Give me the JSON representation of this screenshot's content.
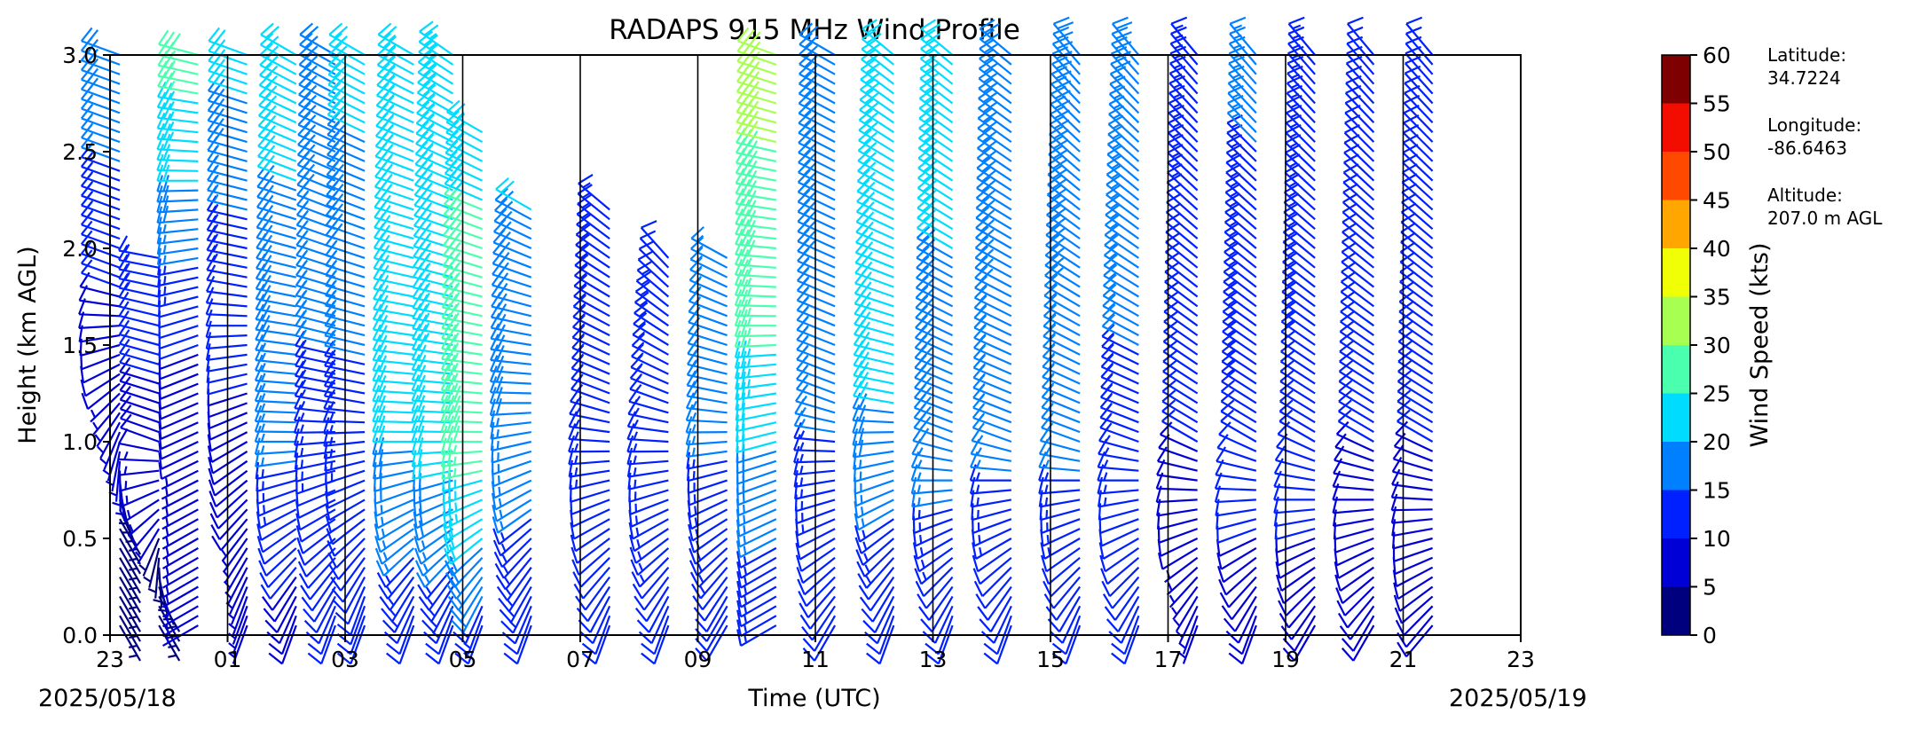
{
  "chart_data": {
    "type": "wind_barbs",
    "title": "RADAPS 915 MHz Wind Profile",
    "xlabel": "Time (UTC)",
    "ylabel": "Height (km AGL)",
    "start_date_label": "2025/05/18",
    "end_date_label": "2025/05/19",
    "x_tick_labels": [
      "23",
      "01",
      "03",
      "05",
      "07",
      "09",
      "11",
      "13",
      "15",
      "17",
      "19",
      "21",
      "23"
    ],
    "y_tick_labels": [
      "0.0",
      "0.5",
      "1.0",
      "1.5",
      "2.0",
      "2.5",
      "3.0"
    ],
    "ylim": [
      0,
      3
    ],
    "colorbar": {
      "label": "Wind Speed (kts)",
      "bounds": [
        0,
        5,
        10,
        15,
        20,
        25,
        30,
        35,
        40,
        45,
        50,
        55,
        60
      ],
      "tick_labels": [
        "0",
        "5",
        "10",
        "15",
        "20",
        "25",
        "30",
        "35",
        "40",
        "45",
        "50",
        "55",
        "60"
      ],
      "colors": [
        "#00007f",
        "#0000d6",
        "#0020ff",
        "#0080ff",
        "#00dcfe",
        "#4affad",
        "#a6ff51",
        "#f0fe06",
        "#ffa700",
        "#ff4800",
        "#f20d00",
        "#7f0000"
      ]
    },
    "site_info": [
      {
        "label": "Latitude:",
        "value": "34.7224"
      },
      {
        "label": "Longitude:",
        "value": "-86.6463"
      },
      {
        "label": "Altitude:",
        "value": "207.0 m AGL"
      }
    ],
    "profiles": [
      {
        "time": "23:10",
        "low": [
          0.6,
          4,
          150
        ],
        "mid": [
          1.8,
          10,
          290
        ],
        "high": [
          3.0,
          20,
          290
        ]
      },
      {
        "time": "23:50",
        "low": [
          0.2,
          3,
          150
        ],
        "mid": [
          1.0,
          8,
          290
        ],
        "high": [
          2.0,
          14,
          280
        ]
      },
      {
        "time": "00:30",
        "low": [
          0.5,
          6,
          240
        ],
        "mid": [
          1.5,
          10,
          250
        ],
        "high": [
          3.0,
          28,
          285
        ]
      },
      {
        "time": "01:20",
        "low": [
          0.2,
          6,
          200
        ],
        "mid": [
          1.8,
          12,
          280
        ],
        "high": [
          3.0,
          22,
          290
        ]
      },
      {
        "time": "02:10",
        "low": [
          0.1,
          8,
          200
        ],
        "mid": [
          1.0,
          16,
          270
        ],
        "high": [
          3.0,
          22,
          300
        ]
      },
      {
        "time": "02:50",
        "low": [
          0.1,
          10,
          200
        ],
        "mid": [
          1.2,
          14,
          280
        ],
        "high": [
          3.0,
          20,
          300
        ]
      },
      {
        "time": "03:20",
        "low": [
          0.2,
          10,
          200
        ],
        "mid": [
          1.2,
          14,
          280
        ],
        "high": [
          3.0,
          22,
          300
        ]
      },
      {
        "time": "04:10",
        "low": [
          0.1,
          12,
          200
        ],
        "mid": [
          1.0,
          20,
          270
        ],
        "high": [
          3.0,
          24,
          300
        ]
      },
      {
        "time": "04:50",
        "low": [
          0.1,
          12,
          200
        ],
        "mid": [
          1.0,
          22,
          270
        ],
        "high": [
          3.0,
          24,
          305
        ]
      },
      {
        "time": "05:20",
        "low": [
          0.1,
          14,
          200
        ],
        "mid": [
          1.0,
          28,
          270
        ],
        "high": [
          2.6,
          24,
          300
        ]
      },
      {
        "time": "06:10",
        "low": [
          0.1,
          12,
          200
        ],
        "mid": [
          1.2,
          18,
          270
        ],
        "high": [
          2.2,
          20,
          300
        ]
      },
      {
        "time": "07:30",
        "low": [
          0.1,
          10,
          200
        ],
        "mid": [
          1.2,
          14,
          290
        ],
        "high": [
          2.2,
          14,
          310
        ]
      },
      {
        "time": "08:30",
        "low": [
          0.1,
          12,
          200
        ],
        "mid": [
          1.2,
          14,
          290
        ],
        "high": [
          2.0,
          12,
          320
        ]
      },
      {
        "time": "09:30",
        "low": [
          0.2,
          12,
          210
        ],
        "mid": [
          1.2,
          16,
          280
        ],
        "high": [
          2.0,
          16,
          300
        ]
      },
      {
        "time": "10:20",
        "low": [
          0.4,
          14,
          240
        ],
        "mid": [
          1.6,
          26,
          270
        ],
        "high": [
          3.0,
          32,
          290
        ]
      },
      {
        "time": "11:20",
        "low": [
          0.1,
          10,
          210
        ],
        "mid": [
          1.2,
          16,
          290
        ],
        "high": [
          3.0,
          20,
          300
        ]
      },
      {
        "time": "12:20",
        "low": [
          0.1,
          10,
          200
        ],
        "mid": [
          1.2,
          20,
          280
        ],
        "high": [
          3.0,
          22,
          310
        ]
      },
      {
        "time": "13:20",
        "low": [
          0.1,
          10,
          200
        ],
        "mid": [
          1.0,
          18,
          290
        ],
        "high": [
          3.0,
          22,
          310
        ]
      },
      {
        "time": "14:20",
        "low": [
          0.1,
          10,
          200
        ],
        "mid": [
          1.0,
          16,
          290
        ],
        "high": [
          3.0,
          20,
          310
        ]
      },
      {
        "time": "15:30",
        "low": [
          0.1,
          10,
          200
        ],
        "mid": [
          1.0,
          16,
          290
        ],
        "high": [
          3.0,
          20,
          320
        ]
      },
      {
        "time": "16:30",
        "low": [
          0.1,
          10,
          200
        ],
        "mid": [
          1.0,
          14,
          290
        ],
        "high": [
          3.0,
          18,
          320
        ]
      },
      {
        "time": "17:30",
        "low": [
          0.1,
          6,
          200
        ],
        "mid": [
          1.0,
          10,
          300
        ],
        "high": [
          3.0,
          14,
          320
        ]
      },
      {
        "time": "18:30",
        "low": [
          0.1,
          8,
          200
        ],
        "mid": [
          1.0,
          12,
          300
        ],
        "high": [
          3.0,
          16,
          320
        ]
      },
      {
        "time": "19:30",
        "low": [
          0.1,
          8,
          210
        ],
        "mid": [
          1.0,
          12,
          300
        ],
        "high": [
          3.0,
          14,
          320
        ]
      },
      {
        "time": "20:30",
        "low": [
          0.1,
          8,
          210
        ],
        "mid": [
          1.0,
          10,
          300
        ],
        "high": [
          3.0,
          12,
          320
        ]
      },
      {
        "time": "21:30",
        "low": [
          0.1,
          8,
          220
        ],
        "mid": [
          1.0,
          10,
          300
        ],
        "high": [
          3.0,
          12,
          320
        ]
      }
    ]
  }
}
